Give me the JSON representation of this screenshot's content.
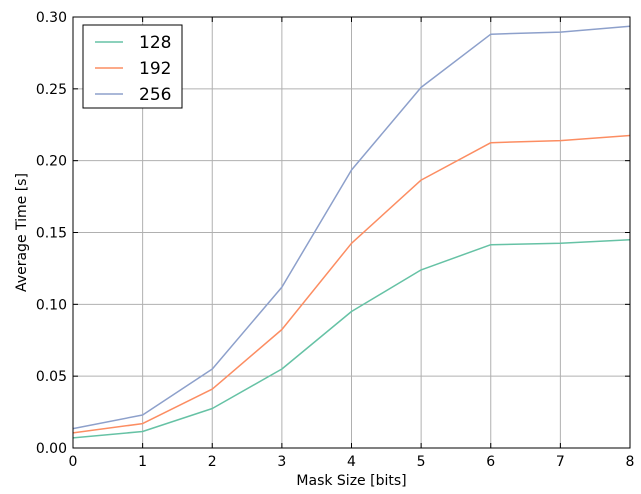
{
  "chart_data": {
    "type": "line",
    "title": "",
    "xlabel": "Mask Size [bits]",
    "ylabel": "Average Time [s]",
    "x": [
      0,
      1,
      2,
      3,
      4,
      5,
      6,
      7,
      8
    ],
    "xlim": [
      0,
      8
    ],
    "ylim": [
      0,
      0.3
    ],
    "xticks": [
      "0",
      "1",
      "2",
      "3",
      "4",
      "5",
      "6",
      "7",
      "8"
    ],
    "yticks": [
      "0.00",
      "0.05",
      "0.10",
      "0.15",
      "0.20",
      "0.25",
      "0.30"
    ],
    "grid": true,
    "legend_position": "top-left",
    "series": [
      {
        "name": "128",
        "color": "#66c2a5",
        "values": [
          0.007,
          0.0115,
          0.0275,
          0.055,
          0.095,
          0.124,
          0.1415,
          0.1425,
          0.145
        ]
      },
      {
        "name": "192",
        "color": "#fc8d62",
        "values": [
          0.0105,
          0.017,
          0.041,
          0.0825,
          0.1425,
          0.1865,
          0.2125,
          0.214,
          0.2175
        ]
      },
      {
        "name": "256",
        "color": "#8da0cb",
        "values": [
          0.0135,
          0.023,
          0.055,
          0.112,
          0.1935,
          0.251,
          0.288,
          0.2895,
          0.2935
        ]
      }
    ]
  }
}
